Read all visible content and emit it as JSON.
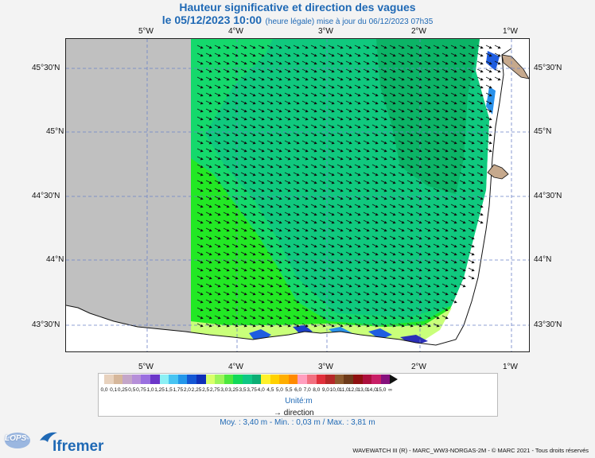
{
  "header": {
    "title": "Hauteur significative et direction des vagues",
    "date": "le 05/12/2023 10:00",
    "update": "(heure légale) mise à jour du 06/12/2023 07h35"
  },
  "axes": {
    "lon_labels": [
      "5°W",
      "4°W",
      "3°W",
      "2°W",
      "1°W"
    ],
    "lat_labels": [
      "45°30'N",
      "45°N",
      "44°30'N",
      "44°N",
      "43°30'N"
    ]
  },
  "legend": {
    "ticks": [
      "0,0",
      "0,1",
      "0,25",
      "0,5",
      "0,75",
      "1,0",
      "1,25",
      "1,5",
      "1,75",
      "2,0",
      "2,25",
      "2,5",
      "2,75",
      "3,0",
      "3,25",
      "3,5",
      "3,75",
      "4,0",
      "4,5",
      "5,0",
      "5,5",
      "6,0",
      "7,0",
      "8,0",
      "9,0",
      "10,0",
      "11,0",
      "12,0",
      "13,0",
      "14,0",
      "15,0",
      "∞"
    ],
    "colors": [
      "#e8d2be",
      "#d6b79b",
      "#c4a6c9",
      "#b68fd9",
      "#9a6fe0",
      "#6b36c9",
      "#8cf0f5",
      "#47c4f2",
      "#2397ea",
      "#1457d4",
      "#0f2fb8",
      "#d9ff6a",
      "#9cf55a",
      "#4de83e",
      "#12d95a",
      "#0ec784",
      "#0bae74",
      "#fff12a",
      "#ffd100",
      "#ffae00",
      "#ff8a00",
      "#ff9fbf",
      "#f27080",
      "#e0303b",
      "#b52828",
      "#8c5a2e",
      "#6e3a1a",
      "#8f1010",
      "#ac0f3d",
      "#c81e66",
      "#86117d"
    ],
    "unit": "Unité:m",
    "direction": "direction"
  },
  "stats": "Moy. : 3,40 m   -   Min. : 0,03 m / Max. : 3,81 m",
  "footer": "WAVEWATCH III (R) - MARC_WW3-NORGAS-2M - © MARC 2021 - Tous droits réservés",
  "logos": {
    "lops": "LOPS",
    "ifremer": "Ifremer"
  }
}
